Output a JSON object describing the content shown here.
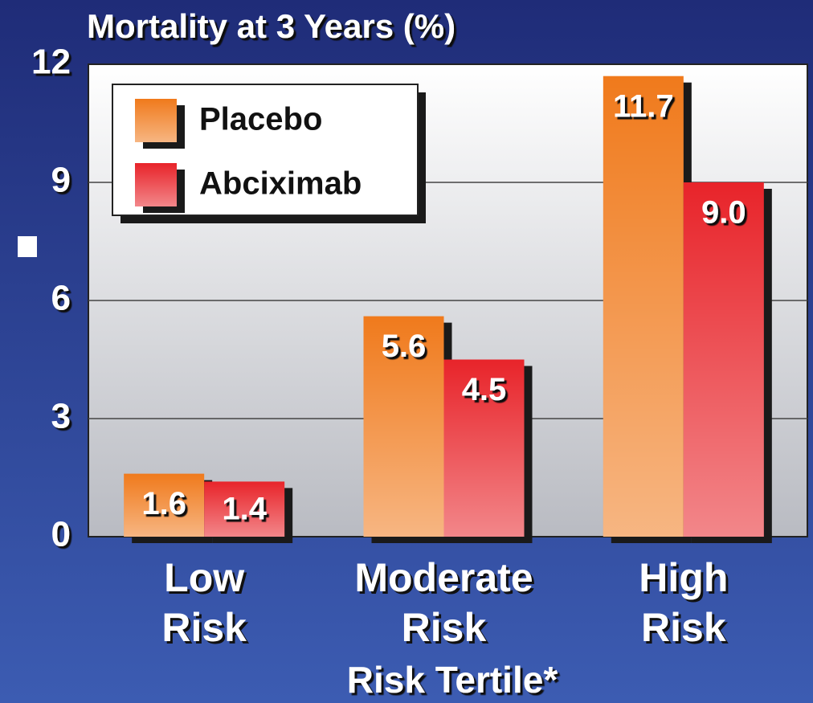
{
  "chart_data": {
    "type": "bar",
    "title": "Mortality at 3 Years (%)",
    "xlabel": "Risk Tertile*",
    "categories": [
      "Low Risk",
      "Moderate Risk",
      "High Risk"
    ],
    "series": [
      {
        "name": "Placebo",
        "color": "#f07a1c",
        "values": [
          1.6,
          5.6,
          11.7
        ]
      },
      {
        "name": "Abciximab",
        "color": "#e8242a",
        "values": [
          1.4,
          4.5,
          9.0
        ],
        "value_labels": [
          "1.4",
          "4.5",
          "9.0"
        ]
      }
    ],
    "ylim": [
      0,
      12
    ],
    "yticks": [
      0,
      3,
      6,
      9,
      12
    ],
    "grid": true,
    "legend": "upper left"
  }
}
